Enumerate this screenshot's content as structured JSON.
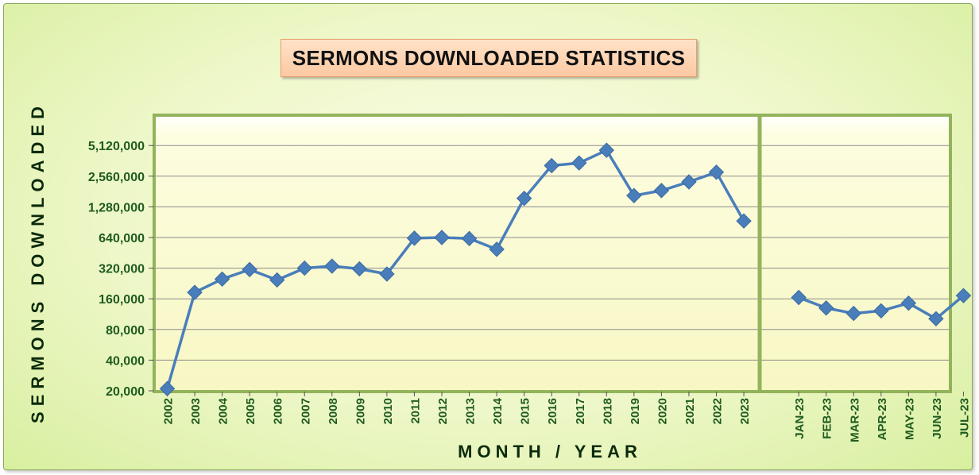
{
  "chart_data": {
    "type": "line",
    "title": "SERMONS DOWNLOADED STATISTICS",
    "xlabel": "MONTH / YEAR",
    "ylabel": "SERMONS DOWNLOADED",
    "y_scale": "log2",
    "ylim": [
      20000,
      7000000
    ],
    "yticks": [
      20000,
      40000,
      80000,
      160000,
      320000,
      640000,
      1280000,
      2560000,
      5120000
    ],
    "ytick_labels": [
      "20,000",
      "40,000",
      "80,000",
      "160,000",
      "320,000",
      "640,000",
      "1,280,000",
      "2,560,000",
      "5,120,000"
    ],
    "grid": "horizontal",
    "legend": "none",
    "colors": {
      "line": "#4a7ebb",
      "marker": "#4a7ebb",
      "plot_bg": "#fbfbd2",
      "plot_border": "#93b35c",
      "gridline": "#8c8c8c"
    },
    "yearly": {
      "categories": [
        "2002",
        "2003",
        "2004",
        "2005",
        "2006",
        "2007",
        "2008",
        "2009",
        "2010",
        "2011",
        "2012",
        "2013",
        "2014",
        "2015",
        "2016",
        "2017",
        "2018",
        "2019",
        "2020",
        "2021",
        "2022",
        "2023"
      ],
      "values": [
        21000,
        185000,
        250000,
        310000,
        245000,
        320000,
        335000,
        315000,
        280000,
        630000,
        640000,
        625000,
        490000,
        1550000,
        3250000,
        3450000,
        4600000,
        1650000,
        1850000,
        2250000,
        2800000,
        930000
      ]
    },
    "monthly": {
      "categories": [
        "JAN-23",
        "FEB-23",
        "MAR-23",
        "APR-23",
        "MAY-23",
        "JUN-23",
        "JUL-23"
      ],
      "values": [
        165000,
        130000,
        115000,
        122000,
        145000,
        102000,
        172000
      ]
    }
  }
}
